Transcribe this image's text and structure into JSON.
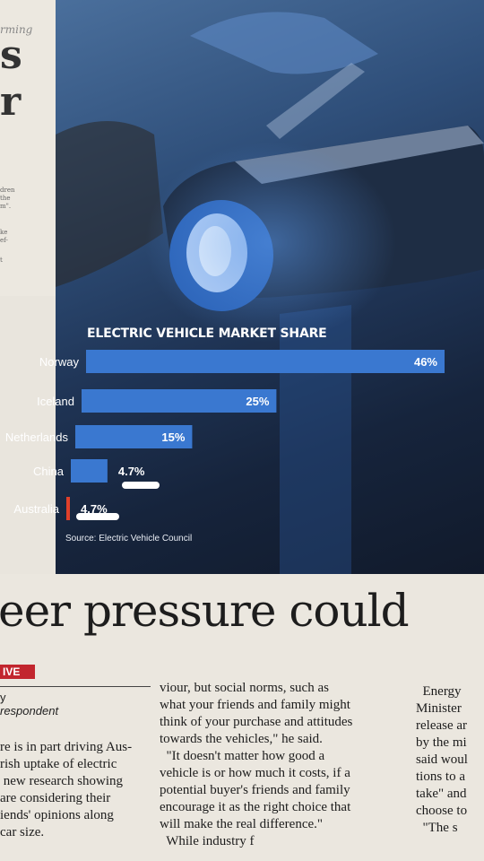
{
  "left_column": {
    "kicker": "rming",
    "big_letters": [
      "s",
      "r"
    ],
    "fragments": [
      "dren",
      "the",
      "m\".",
      "ke",
      "ef-",
      "t"
    ]
  },
  "chart_data": {
    "type": "bar",
    "orientation": "horizontal",
    "title": "ELECTRIC VEHICLE MARKET SHARE",
    "categories": [
      "Norway",
      "Iceland",
      "Netherlands",
      "China",
      "Australia"
    ],
    "values": [
      46,
      25,
      15,
      4.7,
      4.7
    ],
    "value_labels": [
      "46%",
      "25%",
      "15%",
      "4.7%",
      "4.7%"
    ],
    "unit": "%",
    "xlim": [
      0,
      46
    ],
    "grid": false,
    "legend": "none",
    "source": "Source: Electric Vehicle Council",
    "colors": {
      "bar": "#3a78d0",
      "highlight": "#e0402a",
      "label": "#ffffff"
    }
  },
  "article": {
    "headline": "eer pressure could",
    "tag": "IVE",
    "byline": [
      "y",
      "respondent"
    ],
    "col1": [
      "re is in part driving Aus-",
      "rish uptake of electric",
      " new research showing",
      "are considering their",
      "iends' opinions along",
      "car size."
    ],
    "col2": [
      "viour, but social norms, such as",
      "what your friends and family might",
      "think of your purchase and attitudes",
      "towards the vehicles,\" he said.",
      "  \"It doesn't matter how good a",
      "vehicle is or how much it costs, if a",
      "potential buyer's friends and family",
      "encourage it as the right choice that",
      "will make the real difference.\"",
      "  While industry f"
    ],
    "col3": [
      "  Energy",
      "Minister",
      "release ar",
      "by the mi",
      "said woul",
      "tions to a",
      "take\" and",
      "choose to",
      "  \"The s"
    ]
  }
}
